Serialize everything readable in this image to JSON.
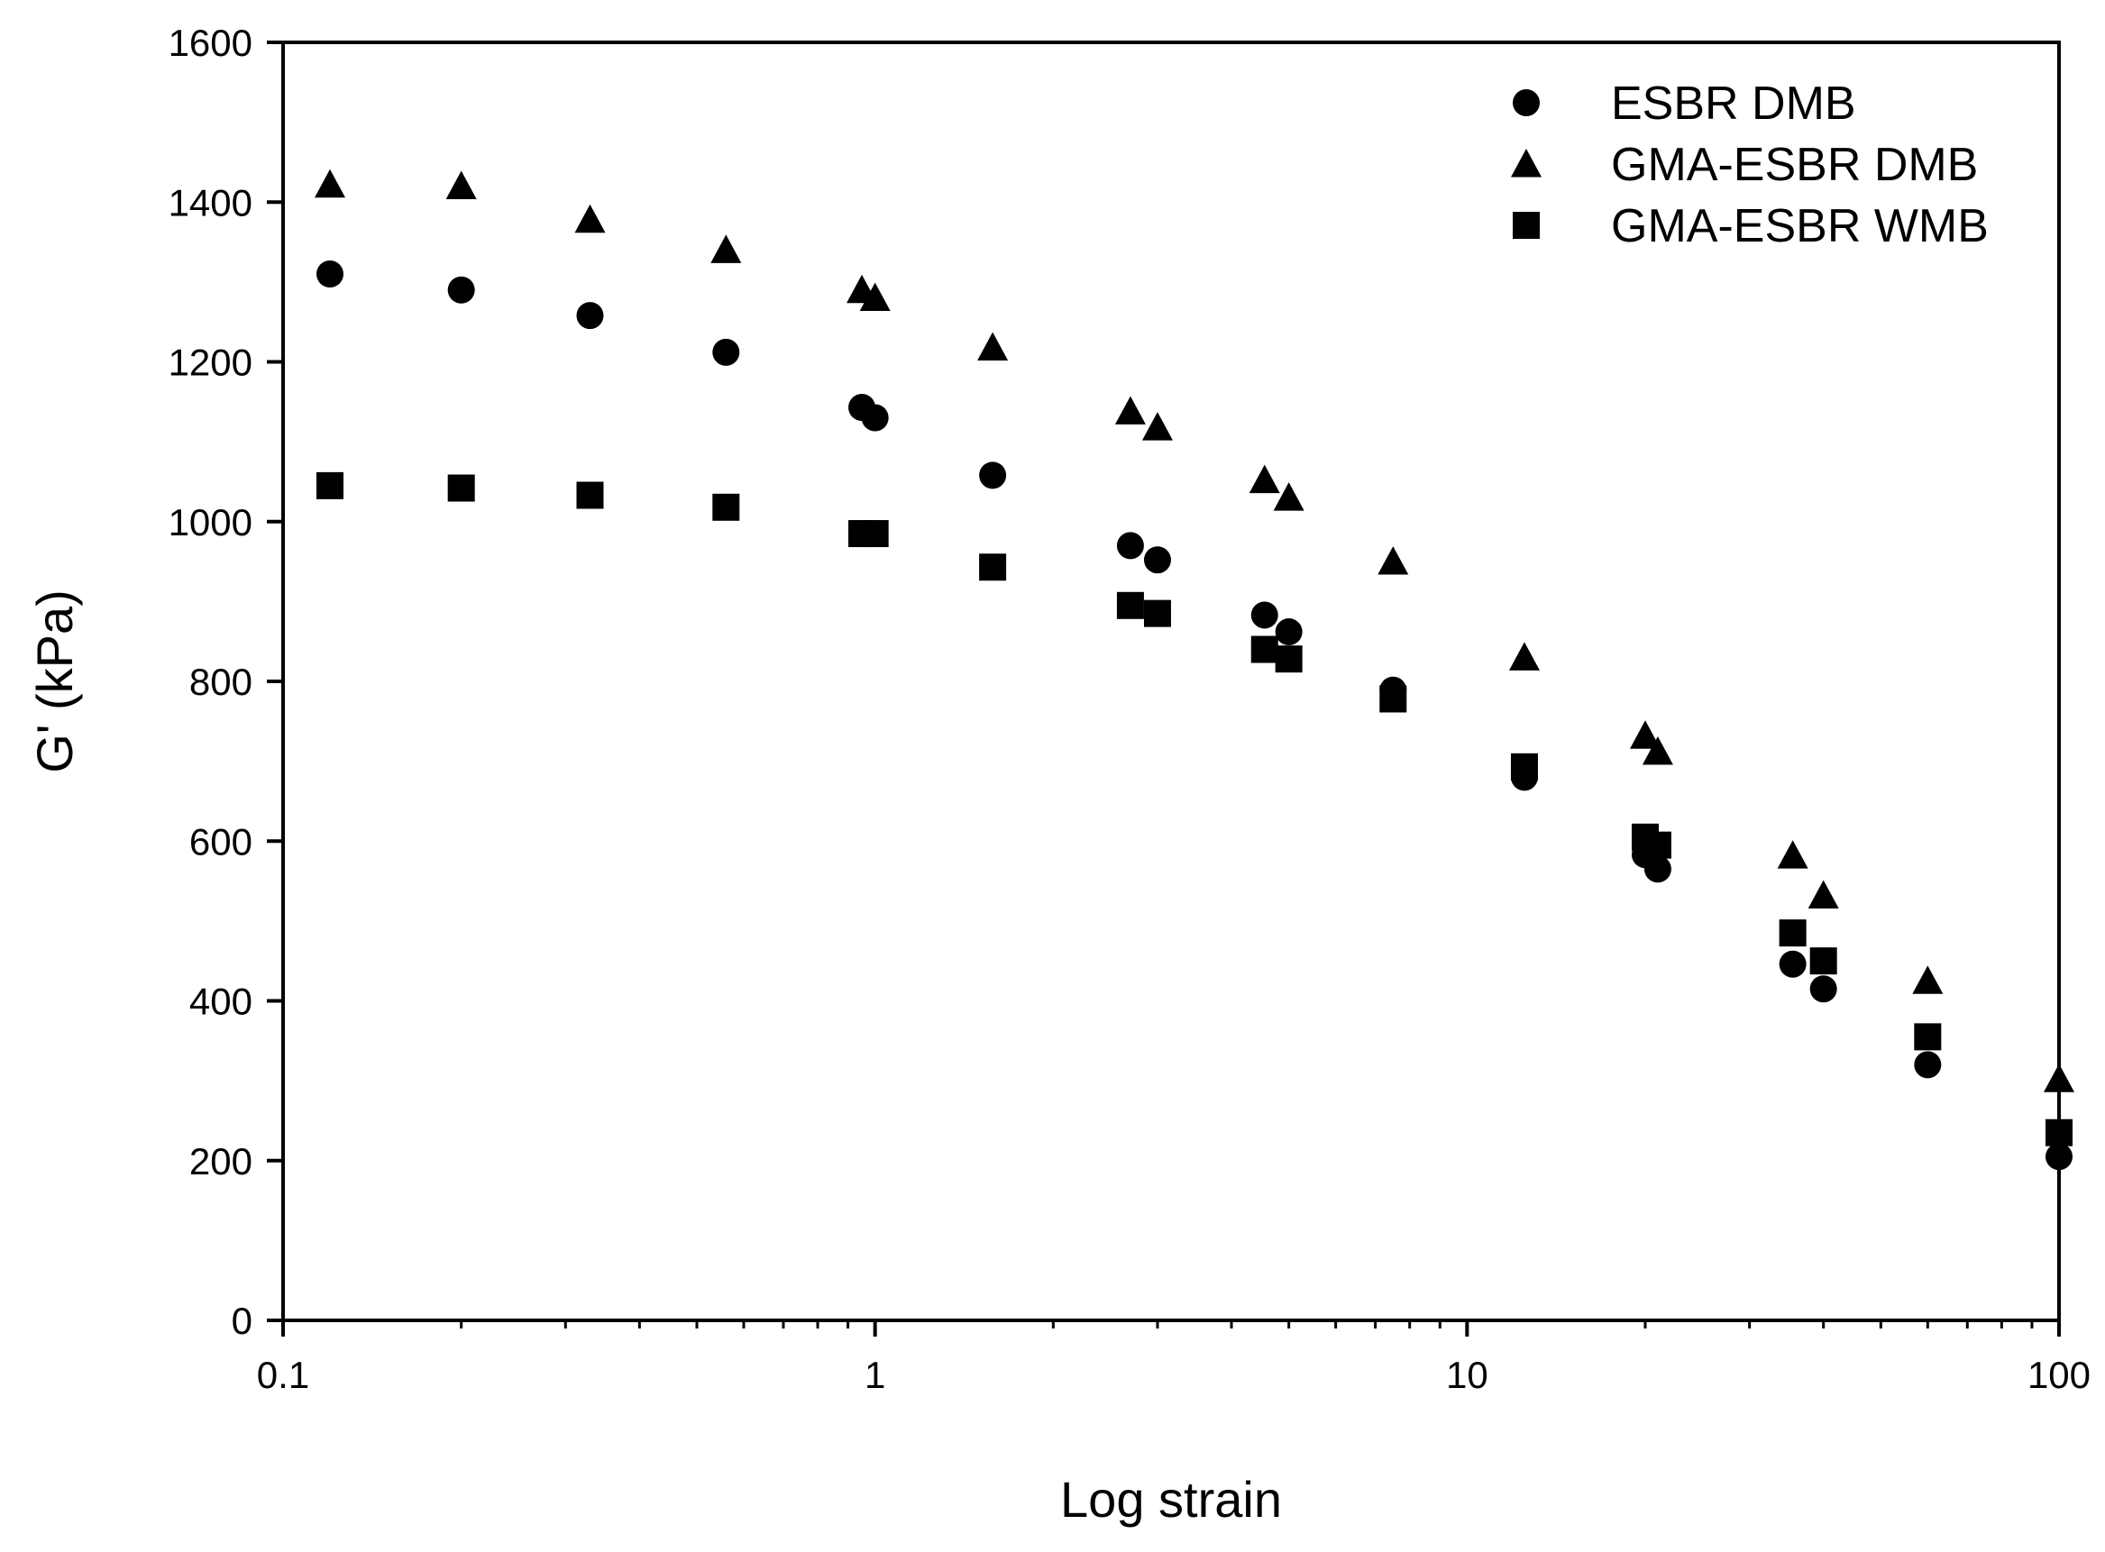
{
  "chart_data": {
    "type": "scatter",
    "xlabel": "Log strain",
    "ylabel": "G' (kPa)",
    "xscale": "log",
    "xlim": [
      0.1,
      100
    ],
    "ylim": [
      0,
      1600
    ],
    "xticks": [
      0.1,
      1,
      10,
      100
    ],
    "xtick_labels": [
      "0.1",
      "1",
      "10",
      "100"
    ],
    "yticks": [
      0,
      200,
      400,
      600,
      800,
      1000,
      1200,
      1400,
      1600
    ],
    "ytick_labels": [
      "0",
      "200",
      "400",
      "600",
      "800",
      "1000",
      "1200",
      "1400",
      "1600"
    ],
    "grid": false,
    "legend_position": "top-right",
    "series": [
      {
        "name": "ESBR DMB",
        "marker": "circle",
        "color": "#000000",
        "x": [
          0.12,
          0.2,
          0.33,
          0.56,
          0.95,
          1.0,
          1.58,
          2.7,
          3.0,
          4.55,
          5.0,
          7.5,
          12.5,
          20.0,
          21.0,
          35.5,
          40.0,
          60.0,
          100.0
        ],
        "y": [
          1310,
          1290,
          1258,
          1212,
          1143,
          1130,
          1058,
          970,
          952,
          883,
          862,
          789,
          680,
          583,
          565,
          446,
          415,
          320,
          205
        ]
      },
      {
        "name": "GMA-ESBR DMB",
        "marker": "triangle",
        "color": "#000000",
        "x": [
          0.12,
          0.2,
          0.33,
          0.56,
          0.95,
          1.0,
          1.58,
          2.7,
          3.0,
          4.55,
          5.0,
          7.5,
          12.5,
          20.0,
          21.0,
          35.5,
          40.0,
          60.0,
          100.0
        ],
        "y": [
          1422,
          1420,
          1378,
          1340,
          1290,
          1280,
          1218,
          1138,
          1118,
          1052,
          1030,
          950,
          830,
          732,
          712,
          582,
          532,
          425,
          302
        ]
      },
      {
        "name": "GMA-ESBR WMB",
        "marker": "square",
        "color": "#000000",
        "x": [
          0.12,
          0.2,
          0.33,
          0.56,
          0.95,
          1.0,
          1.58,
          2.7,
          3.0,
          4.55,
          5.0,
          7.5,
          12.5,
          20.0,
          21.0,
          35.5,
          40.0,
          60.0,
          100.0
        ],
        "y": [
          1045,
          1042,
          1033,
          1018,
          985,
          985,
          943,
          895,
          885,
          840,
          828,
          778,
          693,
          605,
          595,
          485,
          450,
          355,
          235
        ]
      }
    ]
  }
}
